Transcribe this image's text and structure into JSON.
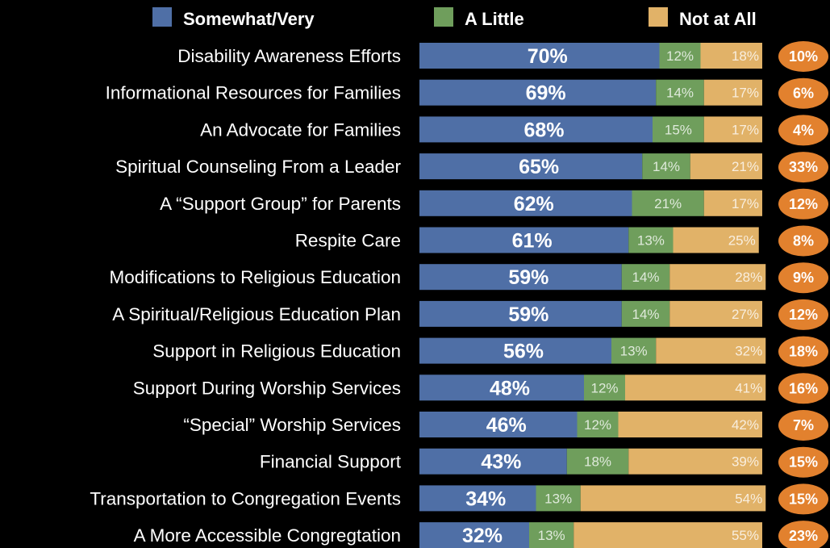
{
  "chart_data": {
    "type": "bar",
    "stacked": true,
    "orientation": "horizontal",
    "colors": {
      "Somewhat/Very": "#4f6fa6",
      "A Little": "#6f9e5c",
      "Not at All": "#e1b268",
      "badge": "#e2812e",
      "background": "#000000"
    },
    "categories": [
      "Disability Awareness Efforts",
      "Informational Resources for Families",
      "An Advocate for Families",
      "Spiritual Counseling From a Leader",
      "A “Support Group” for Parents",
      "Respite Care",
      "Modifications to Religious Education",
      "A Spiritual/Religious Education Plan",
      "Support in Religious Education",
      "Support During Worship Services",
      "“Special” Worship Services",
      "Financial Support",
      "Transportation to Congregation Events",
      "A More Accessible Congregtation"
    ],
    "series": [
      {
        "name": "Somewhat/Very",
        "values": [
          70,
          69,
          68,
          65,
          62,
          61,
          59,
          59,
          56,
          48,
          46,
          43,
          34,
          32
        ]
      },
      {
        "name": "A Little",
        "values": [
          12,
          14,
          15,
          14,
          21,
          13,
          14,
          14,
          13,
          12,
          12,
          18,
          13,
          13
        ]
      },
      {
        "name": "Not at All",
        "values": [
          18,
          17,
          17,
          21,
          17,
          25,
          28,
          27,
          32,
          41,
          42,
          39,
          54,
          55
        ]
      }
    ],
    "badge_values": [
      10,
      6,
      4,
      33,
      12,
      8,
      9,
      12,
      18,
      16,
      7,
      15,
      15,
      23
    ],
    "legend_position": "top",
    "xlim": [
      0,
      100
    ],
    "grid": false
  }
}
